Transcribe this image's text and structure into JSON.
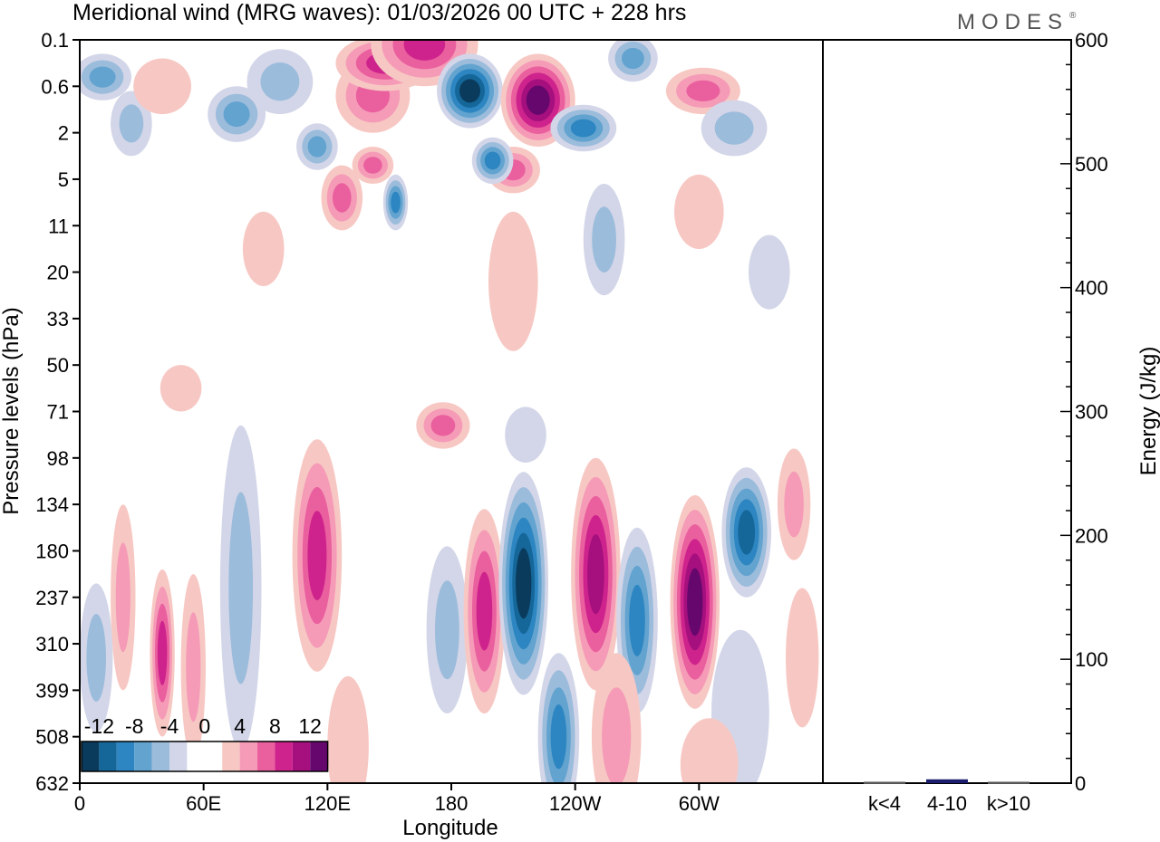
{
  "title": "Meridional wind (MRG waves):  01/03/2026  00 UTC  + 228 hrs",
  "logo": "MODES",
  "logo_mark": "®",
  "colors": {
    "neg": [
      "#0b3b5c",
      "#15679a",
      "#2d86c1",
      "#62a3cf",
      "#9cbcdc",
      "#d3d6e8"
    ],
    "pos": [
      "#f7c8c3",
      "#f59bb7",
      "#ea5f9e",
      "#ce238c",
      "#a5107e",
      "#66076e"
    ],
    "bar": "#1c1c6e"
  },
  "chart_data": [
    {
      "type": "heatmap",
      "variable": "Meridional wind (MRG waves)",
      "xlabel": "Longitude",
      "ylabel": "Pressure levels (hPa)",
      "x_ticks": [
        "0",
        "60E",
        "120E",
        "180",
        "120W",
        "60W"
      ],
      "x_range": [
        0,
        360
      ],
      "y_ticks": [
        "0.1",
        "0.6",
        "2",
        "5",
        "11",
        "20",
        "33",
        "50",
        "71",
        "98",
        "134",
        "180",
        "237",
        "310",
        "399",
        "508",
        "632"
      ],
      "colorbar_labels": [
        "-12",
        "-8",
        "-4",
        "0",
        "4",
        "8",
        "12"
      ],
      "colorbar_levels": [
        -14,
        -12,
        -10,
        -8,
        -6,
        -4,
        -2,
        2,
        4,
        6,
        8,
        10,
        12,
        14
      ],
      "features": [
        {
          "lon": 11,
          "lev": 0.8,
          "lon_w": 14,
          "lev_w": 0.5,
          "value": -5
        },
        {
          "lon": 25,
          "lev": 1.8,
          "lon_w": 10,
          "lev_w": 0.7,
          "value": -3
        },
        {
          "lon": 40,
          "lev": 1.0,
          "lon_w": 14,
          "lev_w": 0.6,
          "value": 2
        },
        {
          "lon": 76,
          "lev": 1.6,
          "lon_w": 14,
          "lev_w": 0.6,
          "value": -5
        },
        {
          "lon": 97,
          "lev": 0.9,
          "lon_w": 16,
          "lev_w": 0.7,
          "value": -3
        },
        {
          "lon": 142,
          "lev": 1.2,
          "lon_w": 18,
          "lev_w": 0.8,
          "value": 6
        },
        {
          "lon": 148,
          "lev": 0.5,
          "lon_w": 24,
          "lev_w": 0.6,
          "value": 7
        },
        {
          "lon": 167,
          "lev": 0.1,
          "lon_w": 26,
          "lev_w": 0.9,
          "value": 8
        },
        {
          "lon": 189,
          "lev": 1.1,
          "lon_w": 16,
          "lev_w": 0.8,
          "value": -14
        },
        {
          "lon": 222,
          "lev": 1.3,
          "lon_w": 18,
          "lev_w": 1.0,
          "value": 13
        },
        {
          "lon": 210,
          "lev": 2.8,
          "lon_w": 13,
          "lev_w": 0.5,
          "value": 6
        },
        {
          "lon": 244,
          "lev": 1.9,
          "lon_w": 16,
          "lev_w": 0.5,
          "value": -7
        },
        {
          "lon": 268,
          "lev": 0.4,
          "lon_w": 12,
          "lev_w": 0.5,
          "value": -5
        },
        {
          "lon": 302,
          "lev": 1.1,
          "lon_w": 18,
          "lev_w": 0.5,
          "value": 6
        },
        {
          "lon": 317,
          "lev": 1.9,
          "lon_w": 16,
          "lev_w": 0.6,
          "value": -3
        },
        {
          "lon": 115,
          "lev": 2.3,
          "lon_w": 10,
          "lev_w": 0.5,
          "value": -5
        },
        {
          "lon": 142,
          "lev": 2.7,
          "lon_w": 10,
          "lev_w": 0.4,
          "value": 5
        },
        {
          "lon": 200,
          "lev": 2.6,
          "lon_w": 10,
          "lev_w": 0.5,
          "value": -7
        },
        {
          "lon": 127,
          "lev": 3.4,
          "lon_w": 10,
          "lev_w": 0.7,
          "value": 6
        },
        {
          "lon": 153,
          "lev": 3.5,
          "lon_w": 6,
          "lev_w": 0.6,
          "value": -7
        },
        {
          "lon": 254,
          "lev": 4.3,
          "lon_w": 10,
          "lev_w": 1.2,
          "value": -3
        },
        {
          "lon": 210,
          "lev": 5.2,
          "lon_w": 12,
          "lev_w": 1.5,
          "value": 2
        },
        {
          "lon": 300,
          "lev": 3.7,
          "lon_w": 12,
          "lev_w": 0.8,
          "value": 2
        },
        {
          "lon": 89,
          "lev": 4.5,
          "lon_w": 10,
          "lev_w": 0.8,
          "value": 2
        },
        {
          "lon": 334,
          "lev": 5.0,
          "lon_w": 10,
          "lev_w": 0.8,
          "value": -2
        },
        {
          "lon": 176,
          "lev": 8.3,
          "lon_w": 13,
          "lev_w": 0.5,
          "value": 5
        },
        {
          "lon": 216,
          "lev": 8.5,
          "lon_w": 10,
          "lev_w": 0.6,
          "value": -2
        },
        {
          "lon": 49,
          "lev": 7.5,
          "lon_w": 10,
          "lev_w": 0.5,
          "value": 2
        },
        {
          "lon": 21,
          "lev": 12.0,
          "lon_w": 6,
          "lev_w": 2.0,
          "value": 4
        },
        {
          "lon": 40,
          "lev": 13.2,
          "lon_w": 6,
          "lev_w": 1.8,
          "value": 7
        },
        {
          "lon": 55,
          "lev": 13.5,
          "lon_w": 6,
          "lev_w": 2.0,
          "value": 3
        },
        {
          "lon": 78,
          "lev": 11.8,
          "lon_w": 10,
          "lev_w": 3.5,
          "value": -4
        },
        {
          "lon": 115,
          "lev": 11.1,
          "lon_w": 12,
          "lev_w": 2.5,
          "value": 7
        },
        {
          "lon": 8,
          "lev": 13.3,
          "lon_w": 8,
          "lev_w": 1.6,
          "value": -3
        },
        {
          "lon": 178,
          "lev": 12.7,
          "lon_w": 10,
          "lev_w": 1.8,
          "value": -4
        },
        {
          "lon": 196,
          "lev": 12.3,
          "lon_w": 10,
          "lev_w": 2.2,
          "value": 7
        },
        {
          "lon": 215,
          "lev": 11.7,
          "lon_w": 12,
          "lev_w": 2.4,
          "value": -12
        },
        {
          "lon": 250,
          "lev": 11.5,
          "lon_w": 12,
          "lev_w": 2.5,
          "value": 9
        },
        {
          "lon": 270,
          "lev": 12.5,
          "lon_w": 10,
          "lev_w": 2.0,
          "value": -7
        },
        {
          "lon": 298,
          "lev": 12.1,
          "lon_w": 12,
          "lev_w": 2.3,
          "value": 13
        },
        {
          "lon": 323,
          "lev": 10.6,
          "lon_w": 12,
          "lev_w": 1.4,
          "value": -9
        },
        {
          "lon": 346,
          "lev": 10.0,
          "lon_w": 8,
          "lev_w": 1.2,
          "value": 4
        },
        {
          "lon": 232,
          "lev": 15.0,
          "lon_w": 10,
          "lev_w": 1.8,
          "value": -7
        },
        {
          "lon": 260,
          "lev": 15.0,
          "lon_w": 12,
          "lev_w": 1.8,
          "value": 3
        },
        {
          "lon": 320,
          "lev": 14.5,
          "lon_w": 14,
          "lev_w": 1.8,
          "value": -2
        },
        {
          "lon": 130,
          "lev": 15.2,
          "lon_w": 10,
          "lev_w": 1.5,
          "value": 2
        },
        {
          "lon": 305,
          "lev": 15.6,
          "lon_w": 14,
          "lev_w": 1.0,
          "value": 2
        },
        {
          "lon": 350,
          "lev": 13.3,
          "lon_w": 8,
          "lev_w": 1.5,
          "value": 2
        }
      ]
    },
    {
      "type": "bar",
      "title": "",
      "categories": [
        "k<4",
        "4-10",
        "k>10"
      ],
      "values": [
        0,
        2,
        0
      ],
      "ylabel": "Energy (J/kg)",
      "ylim": [
        0,
        600
      ],
      "y_ticks": [
        0,
        100,
        200,
        300,
        400,
        500,
        600
      ]
    }
  ]
}
